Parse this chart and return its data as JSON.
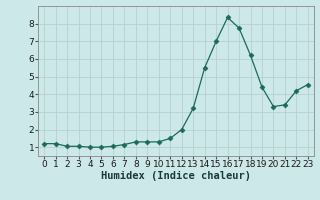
{
  "x": [
    0,
    1,
    2,
    3,
    4,
    5,
    6,
    7,
    8,
    9,
    10,
    11,
    12,
    13,
    14,
    15,
    16,
    17,
    18,
    19,
    20,
    21,
    22,
    23
  ],
  "y": [
    1.2,
    1.2,
    1.05,
    1.05,
    1.0,
    1.0,
    1.05,
    1.15,
    1.3,
    1.3,
    1.3,
    1.5,
    2.0,
    3.2,
    5.5,
    7.0,
    8.35,
    7.75,
    6.2,
    4.4,
    3.3,
    3.4,
    4.2,
    4.55
  ],
  "line_color": "#1a6b5a",
  "marker": "D",
  "marker_size": 2.5,
  "bg_color": "#cde8e8",
  "grid_color": "#b8d0d0",
  "xlabel": "Humidex (Indice chaleur)",
  "ylim": [
    0.5,
    9.0
  ],
  "xlim": [
    -0.5,
    23.5
  ],
  "yticks": [
    1,
    2,
    3,
    4,
    5,
    6,
    7,
    8
  ],
  "xticks": [
    0,
    1,
    2,
    3,
    4,
    5,
    6,
    7,
    8,
    9,
    10,
    11,
    12,
    13,
    14,
    15,
    16,
    17,
    18,
    19,
    20,
    21,
    22,
    23
  ],
  "tick_fontsize": 6.5,
  "xlabel_fontsize": 7.5
}
